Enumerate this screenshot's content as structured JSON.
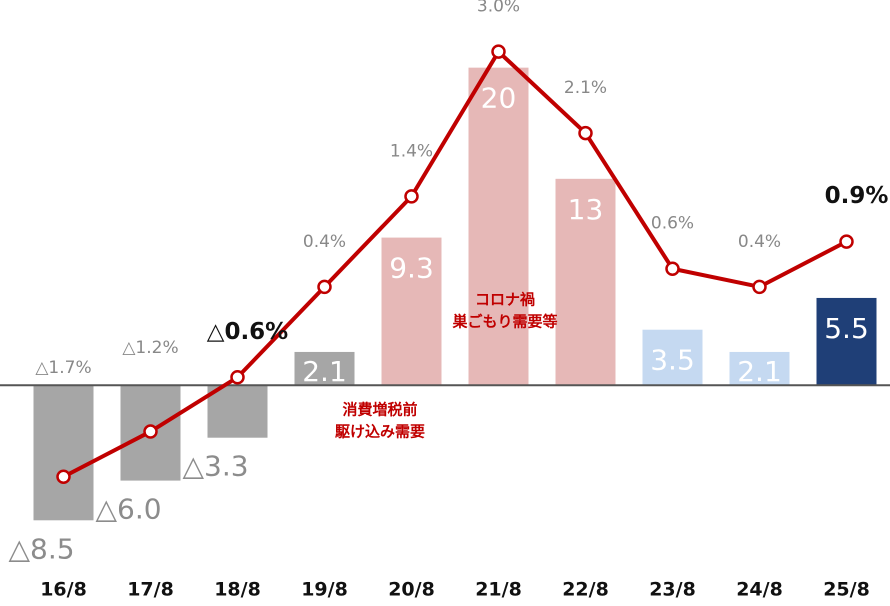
{
  "chart_data": {
    "type": "bar_line",
    "categories": [
      "16/8",
      "17/8",
      "18/8",
      "19/8",
      "20/8",
      "21/8",
      "22/8",
      "23/8",
      "24/8",
      "25/8"
    ],
    "series": [
      {
        "type": "bar",
        "values": [
          -8.5,
          -6.0,
          -3.3,
          2.1,
          9.3,
          20,
          13,
          3.5,
          2.1,
          5.5
        ],
        "value_labels": [
          "△8.5",
          "△6.0",
          "△3.3",
          "2.1",
          "9.3",
          "20",
          "13",
          "3.5",
          "2.1",
          "5.5"
        ],
        "colors": [
          "#a6a6a6",
          "#a6a6a6",
          "#a6a6a6",
          "#a6a6a6",
          "#e6b8b7",
          "#e6b8b7",
          "#e6b8b7",
          "#c5d9f1",
          "#c5d9f1",
          "#1f3f77"
        ]
      },
      {
        "type": "line",
        "axis": "y2",
        "color": "#c00000",
        "values": [
          -1.7,
          -1.2,
          -0.6,
          0.4,
          1.4,
          3.0,
          2.1,
          0.6,
          0.4,
          0.9
        ],
        "value_labels": [
          "△1.7%",
          "△1.2%",
          "△0.6%",
          "0.4%",
          "1.4%",
          "3.0%",
          "2.1%",
          "0.6%",
          "0.4%",
          "0.9%"
        ]
      }
    ],
    "ylim": [
      -11,
      23
    ],
    "y2lim": [
      -2.62,
      3.35
    ],
    "annotations": [
      {
        "lines": [
          "コロナ禍",
          "巣ごもり需要等"
        ]
      },
      {
        "lines": [
          "消費増税前",
          "駆け込み需要"
        ]
      }
    ]
  }
}
